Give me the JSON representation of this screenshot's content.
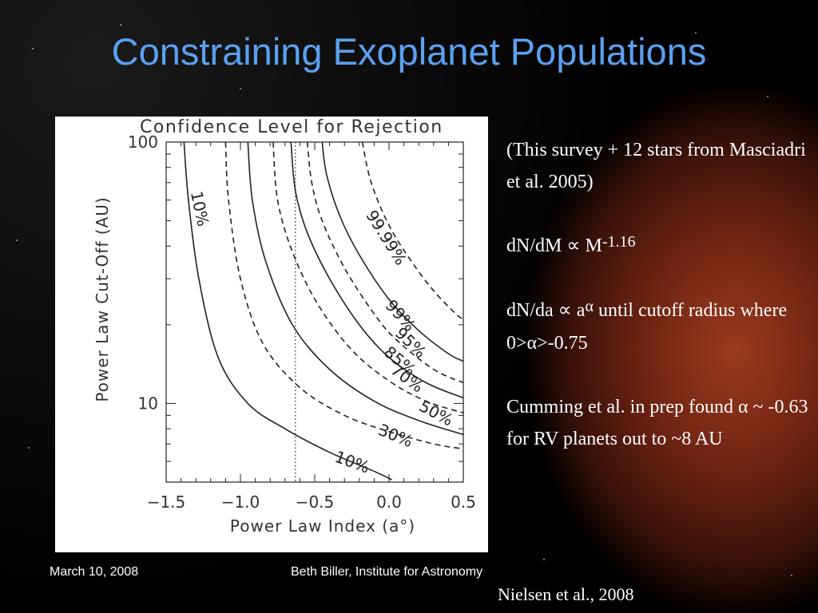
{
  "slide": {
    "title": "Constraining Exoplanet Populations",
    "date": "March 10, 2008",
    "presenter": "Beth Biller, Institute for Astronomy",
    "credit": "Nielsen et al., 2008"
  },
  "bullets": {
    "line1": "(This survey + 12 stars from Masciadri et al. 2005)",
    "mass_pre": "dN/dM ∝ M",
    "mass_exp": "-1.16",
    "a_pre": "dN/da ∝ a",
    "a_exp": "α",
    "a_post": " until cutoff radius where 0>α>-0.75",
    "cumming": "Cumming et al. in prep found α ~ -0.63 for RV planets out to ~8 AU"
  },
  "chart_data": {
    "type": "contour",
    "title": "Confidence Level for Rejection",
    "xlabel": "Power Law Index (a°)",
    "ylabel": "Power Law Cut-Off (AU)",
    "xlim": [
      -1.5,
      0.5
    ],
    "ylim": [
      5,
      100
    ],
    "y_scale": "log",
    "x_ticks": [
      "−1.5",
      "−1.0",
      "−0.5",
      "0.0",
      "0.5"
    ],
    "y_ticks": [
      "100",
      "10"
    ],
    "reference_line_x": -0.63,
    "contours": [
      {
        "label": "10%",
        "style": "solid",
        "points": [
          [
            -1.38,
            100
          ],
          [
            -1.35,
            60
          ],
          [
            -1.28,
            30
          ],
          [
            -1.15,
            15
          ],
          [
            -0.95,
            10
          ],
          [
            -0.7,
            8
          ],
          [
            -0.4,
            6.5
          ],
          [
            -0.1,
            5.5
          ],
          [
            0.02,
            5.1
          ]
        ]
      },
      {
        "label": "30%",
        "style": "dashed",
        "points": [
          [
            -1.1,
            100
          ],
          [
            -1.08,
            60
          ],
          [
            -1.0,
            30
          ],
          [
            -0.85,
            17
          ],
          [
            -0.6,
            11.5
          ],
          [
            -0.3,
            9
          ],
          [
            0.0,
            7.8
          ],
          [
            0.3,
            7.0
          ],
          [
            0.5,
            6.7
          ]
        ]
      },
      {
        "label": "50%",
        "style": "solid",
        "points": [
          [
            -0.95,
            100
          ],
          [
            -0.92,
            60
          ],
          [
            -0.83,
            35
          ],
          [
            -0.65,
            20
          ],
          [
            -0.4,
            13.5
          ],
          [
            -0.1,
            10.2
          ],
          [
            0.2,
            8.6
          ],
          [
            0.5,
            7.6
          ]
        ]
      },
      {
        "label": "70%",
        "style": "dashed",
        "points": [
          [
            -0.78,
            100
          ],
          [
            -0.75,
            60
          ],
          [
            -0.65,
            38
          ],
          [
            -0.48,
            24
          ],
          [
            -0.25,
            16
          ],
          [
            0.0,
            12.2
          ],
          [
            0.25,
            10.2
          ],
          [
            0.5,
            9.2
          ]
        ]
      },
      {
        "label": "85%",
        "style": "solid",
        "points": [
          [
            -0.66,
            100
          ],
          [
            -0.63,
            65
          ],
          [
            -0.55,
            45
          ],
          [
            -0.4,
            30
          ],
          [
            -0.2,
            20
          ],
          [
            0.0,
            15
          ],
          [
            0.25,
            12
          ],
          [
            0.5,
            10.5
          ]
        ]
      },
      {
        "label": "95%",
        "style": "dashed",
        "points": [
          [
            -0.55,
            100
          ],
          [
            -0.52,
            70
          ],
          [
            -0.45,
            50
          ],
          [
            -0.3,
            33
          ],
          [
            -0.1,
            22
          ],
          [
            0.05,
            17.5
          ],
          [
            0.3,
            13.5
          ],
          [
            0.5,
            12
          ]
        ]
      },
      {
        "label": "99%",
        "style": "solid",
        "points": [
          [
            -0.45,
            100
          ],
          [
            -0.42,
            75
          ],
          [
            -0.33,
            52
          ],
          [
            -0.2,
            37
          ],
          [
            0.0,
            25
          ],
          [
            0.2,
            19
          ],
          [
            0.4,
            15.5
          ],
          [
            0.5,
            14.5
          ]
        ]
      },
      {
        "label": "99.99%",
        "style": "dashed",
        "points": [
          [
            -0.18,
            100
          ],
          [
            -0.12,
            70
          ],
          [
            0.0,
            48
          ],
          [
            0.15,
            35
          ],
          [
            0.3,
            27
          ],
          [
            0.45,
            22
          ],
          [
            0.5,
            21
          ]
        ]
      }
    ],
    "contour_labels": [
      {
        "text": "10%",
        "x": -1.31,
        "y": 55,
        "angle": 78
      },
      {
        "text": "99.99%",
        "x": -0.05,
        "y": 42,
        "angle": 58
      },
      {
        "text": "99%",
        "x": 0.05,
        "y": 21,
        "angle": 48
      },
      {
        "text": "95%",
        "x": 0.12,
        "y": 16.5,
        "angle": 44
      },
      {
        "text": "85%",
        "x": 0.05,
        "y": 14,
        "angle": 40
      },
      {
        "text": "70%",
        "x": 0.1,
        "y": 12,
        "angle": 36
      },
      {
        "text": "50%",
        "x": 0.3,
        "y": 8.8,
        "angle": 28
      },
      {
        "text": "30%",
        "x": 0.03,
        "y": 7.2,
        "angle": 22
      },
      {
        "text": "10%",
        "x": -0.26,
        "y": 5.7,
        "angle": 20
      }
    ]
  }
}
